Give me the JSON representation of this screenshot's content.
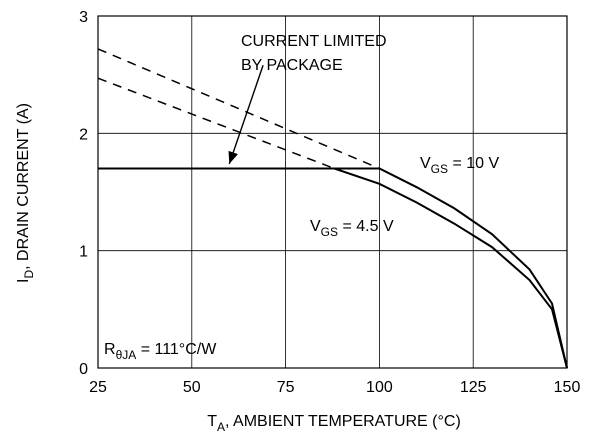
{
  "chart_data": {
    "type": "line",
    "xlabel_main": "T",
    "xlabel_sub": "A",
    "xlabel_rest": ", AMBIENT TEMPERATURE (°C)",
    "ylabel_main": "I",
    "ylabel_sub": "D",
    "ylabel_rest": ", DRAIN CURRENT (A)",
    "xlim": [
      25,
      150
    ],
    "ylim": [
      0,
      3
    ],
    "x_ticks": [
      "25",
      "50",
      "75",
      "100",
      "125",
      "150"
    ],
    "y_ticks": [
      "0",
      "1",
      "2",
      "3"
    ],
    "grid": true,
    "series": [
      {
        "name_main": "V",
        "name_sub": "GS",
        "name_rest": " = 10 V",
        "style": "solid",
        "points": [
          [
            25,
            1.7
          ],
          [
            100,
            1.7
          ],
          [
            110,
            1.54
          ],
          [
            120,
            1.36
          ],
          [
            130,
            1.14
          ],
          [
            140,
            0.84
          ],
          [
            146,
            0.55
          ],
          [
            150,
            0.0
          ]
        ]
      },
      {
        "name_main": "V",
        "name_sub": "GS",
        "name_rest": " = 4.5 V",
        "style": "solid",
        "points": [
          [
            25,
            1.7
          ],
          [
            88,
            1.7
          ],
          [
            100,
            1.57
          ],
          [
            110,
            1.41
          ],
          [
            120,
            1.23
          ],
          [
            130,
            1.03
          ],
          [
            140,
            0.75
          ],
          [
            146,
            0.5
          ],
          [
            150,
            0.0
          ]
        ]
      },
      {
        "name": "extrapolated 10 V",
        "style": "dashed",
        "points": [
          [
            25,
            2.72
          ],
          [
            100,
            1.7
          ]
        ]
      },
      {
        "name": "extrapolated 4.5 V",
        "style": "dashed",
        "points": [
          [
            25,
            2.47
          ],
          [
            88,
            1.7
          ]
        ]
      }
    ],
    "annotations": {
      "package_limit_line1": "CURRENT LIMITED",
      "package_limit_line2": "BY PACKAGE",
      "rtheta_main": "R",
      "rtheta_sub": "θJA",
      "rtheta_rest": " = 111°C/W"
    },
    "arrow": {
      "from": [
        69,
        2.58
      ],
      "to": [
        60,
        1.74
      ]
    }
  }
}
